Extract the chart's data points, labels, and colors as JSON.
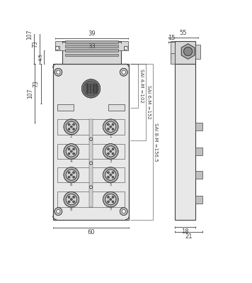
{
  "bg_color": "#ffffff",
  "line_color": "#404040",
  "dims": {
    "top_39": "39",
    "top_33": "33",
    "left_4_5": "4.5",
    "left_73": "73",
    "left_107": "107",
    "bottom_60": "60",
    "sai_4m": "SAI 4-M =102",
    "sai_6m": "SAI 6-M =152",
    "sai_8m": "SAI 8-M =156.5",
    "right_55": "55",
    "right_15": "15",
    "right_18": "18",
    "right_21": "21"
  },
  "colors": {
    "body_fill": "#d8d8d8",
    "connector_fill": "#b8b8b8",
    "connector_inner": "#e0e0e0",
    "pin_fill": "#606060",
    "label_fill": "#f0f0f0",
    "central_dark": "#707070",
    "ridge_fill": "#aaaaaa",
    "light_fill": "#e8e8e8"
  }
}
